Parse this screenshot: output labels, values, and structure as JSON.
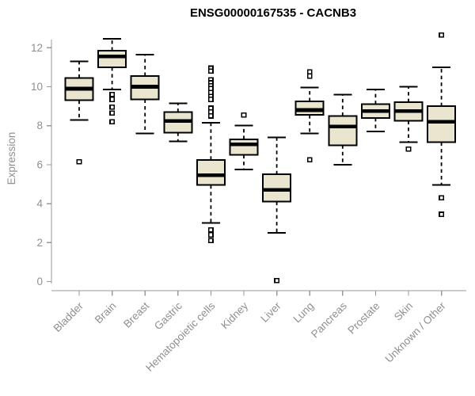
{
  "chart_data": {
    "type": "boxplot",
    "title": "ENSG00000167535 - CACNB3",
    "xlabel": "",
    "ylabel": "Expression",
    "ylim": [
      0,
      12.8
    ],
    "yticks": [
      0,
      2,
      4,
      6,
      8,
      10,
      12
    ],
    "grid": false,
    "legend": "none",
    "colors": {
      "box_fill": "#EAE5CE",
      "box_stroke": "#000000",
      "median": "#000000",
      "whisker": "#000000",
      "axis_line": "#989898",
      "axis_text": "#8f8f8f",
      "title": "#000000",
      "background": "#ffffff"
    },
    "categories": [
      "Bladder",
      "Brain",
      "Breast",
      "Gastric",
      "Hematopoietic cells",
      "Kidney",
      "Liver",
      "Lung",
      "Pancreas",
      "Prostate",
      "Skin",
      "Unknown / Other"
    ],
    "boxes": [
      {
        "category": "Bladder",
        "low": 8.3,
        "q1": 9.3,
        "median": 9.9,
        "q3": 10.45,
        "high": 11.3,
        "outliers": [
          6.15
        ]
      },
      {
        "category": "Brain",
        "low": 9.85,
        "q1": 11.0,
        "median": 11.55,
        "q3": 11.85,
        "high": 12.45,
        "outliers": [
          9.6,
          9.35,
          8.95,
          8.65,
          8.2
        ]
      },
      {
        "category": "Breast",
        "low": 7.6,
        "q1": 9.35,
        "median": 10.0,
        "q3": 10.55,
        "high": 11.65,
        "outliers": []
      },
      {
        "category": "Gastric",
        "low": 7.2,
        "q1": 7.65,
        "median": 8.25,
        "q3": 8.7,
        "high": 9.15,
        "outliers": []
      },
      {
        "category": "Hematopoietic cells",
        "low": 3.0,
        "q1": 4.95,
        "median": 5.45,
        "q3": 6.25,
        "high": 8.15,
        "outliers": [
          10.95,
          10.8,
          10.35,
          10.2,
          10.05,
          9.9,
          9.7,
          9.5,
          9.35,
          8.9,
          8.7,
          8.5,
          2.65,
          2.4,
          2.1
        ]
      },
      {
        "category": "Kidney",
        "low": 5.75,
        "q1": 6.5,
        "median": 7.05,
        "q3": 7.3,
        "high": 8.0,
        "outliers": [
          8.55
        ]
      },
      {
        "category": "Liver",
        "low": 2.5,
        "q1": 4.1,
        "median": 4.7,
        "q3": 5.5,
        "high": 7.4,
        "outliers": [
          0.05
        ]
      },
      {
        "category": "Lung",
        "low": 7.6,
        "q1": 8.55,
        "median": 8.8,
        "q3": 9.25,
        "high": 9.95,
        "outliers": [
          10.75,
          10.55,
          6.25
        ]
      },
      {
        "category": "Pancreas",
        "low": 6.0,
        "q1": 7.0,
        "median": 7.95,
        "q3": 8.5,
        "high": 9.6,
        "outliers": []
      },
      {
        "category": "Prostate",
        "low": 7.7,
        "q1": 8.4,
        "median": 8.75,
        "q3": 9.1,
        "high": 9.85,
        "outliers": []
      },
      {
        "category": "Skin",
        "low": 7.15,
        "q1": 8.25,
        "median": 8.75,
        "q3": 9.2,
        "high": 10.0,
        "outliers": [
          6.8
        ]
      },
      {
        "category": "Unknown / Other",
        "low": 4.95,
        "q1": 7.15,
        "median": 8.2,
        "q3": 9.0,
        "high": 11.0,
        "outliers": [
          12.65,
          4.3,
          3.45
        ]
      }
    ]
  }
}
